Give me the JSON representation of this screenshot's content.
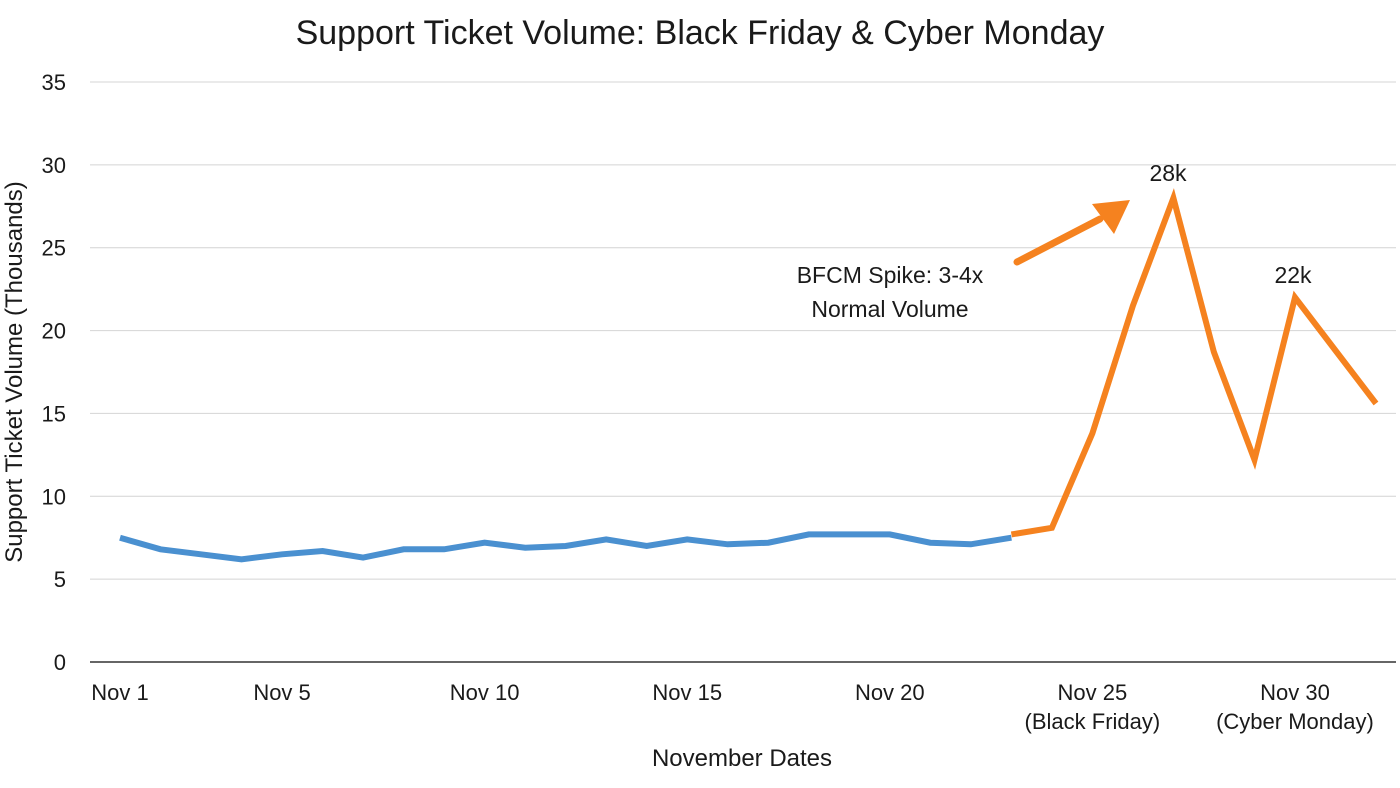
{
  "chart_data": {
    "type": "line",
    "title": "Support Ticket Volume: Black Friday & Cyber Monday",
    "xlabel": "November Dates",
    "ylabel": "Support Ticket Volume (Thousands)",
    "ylim": [
      0,
      35
    ],
    "yticks": [
      0,
      5,
      10,
      15,
      20,
      25,
      30,
      35
    ],
    "xlim": [
      1,
      32
    ],
    "grid": true,
    "xticks": [
      {
        "x": 1,
        "line1": "Nov 1",
        "line2": ""
      },
      {
        "x": 5,
        "line1": "Nov 5",
        "line2": ""
      },
      {
        "x": 10,
        "line1": "Nov 10",
        "line2": ""
      },
      {
        "x": 15,
        "line1": "Nov 15",
        "line2": ""
      },
      {
        "x": 20,
        "line1": "Nov 20",
        "line2": ""
      },
      {
        "x": 25,
        "line1": "Nov 25",
        "line2": "(Black Friday)"
      },
      {
        "x": 30,
        "line1": "Nov 30",
        "line2": "(Cyber Monday)"
      }
    ],
    "series": [
      {
        "color": "#4a90d0",
        "x": [
          1,
          2,
          3,
          4,
          5,
          6,
          7,
          8,
          9,
          10,
          11,
          12,
          13,
          14,
          15,
          16,
          17,
          18,
          19,
          20,
          21,
          22,
          23
        ],
        "y": [
          7.5,
          6.8,
          6.5,
          6.2,
          6.5,
          6.7,
          6.3,
          6.8,
          6.8,
          7.2,
          6.9,
          7.0,
          7.4,
          7.0,
          7.4,
          7.1,
          7.2,
          7.7,
          7.7,
          7.7,
          7.2,
          7.1,
          7.5
        ]
      },
      {
        "color": "#f5821f",
        "x": [
          23,
          24,
          25,
          26,
          27,
          28,
          29,
          30,
          31,
          32
        ],
        "y": [
          7.7,
          8.1,
          13.8,
          21.5,
          28.0,
          18.7,
          12.2,
          22.0,
          18.8,
          15.6
        ]
      }
    ],
    "annotations": {
      "spike_line1": "BFCM Spike: 3-4x",
      "spike_line2": "Normal Volume",
      "peak1": "28k",
      "peak2": "22k"
    }
  }
}
